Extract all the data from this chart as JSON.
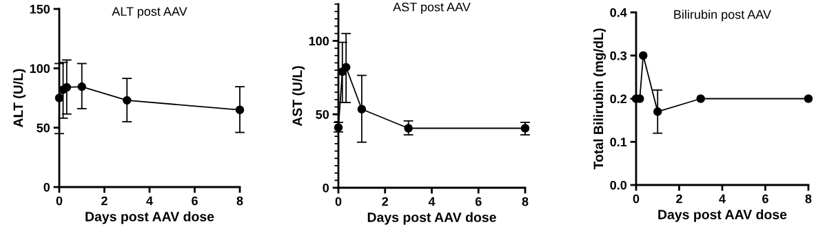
{
  "chart_data": [
    {
      "type": "line",
      "title": "ALT post AAV",
      "xlabel": "Days post AAV dose",
      "ylabel": "ALT (U/L)",
      "marker": "circle",
      "line_style": "solid",
      "grid": false,
      "xlim": [
        0,
        8
      ],
      "xticks": [
        0,
        2,
        4,
        6,
        8
      ],
      "ylim": [
        0,
        150
      ],
      "yticks": [
        0,
        50,
        100,
        150
      ],
      "series": [
        {
          "color": "#000000",
          "x": [
            0,
            0.17,
            0.33,
            1,
            3,
            8
          ],
          "values": [
            75,
            82,
            84,
            84.5,
            73,
            65
          ],
          "errors": [
            [
              45,
              104
            ],
            [
              58,
              105
            ],
            [
              61.5,
              107
            ],
            [
              66,
              104
            ],
            [
              55,
              91.5
            ],
            [
              46,
              84.5
            ]
          ]
        }
      ]
    },
    {
      "type": "line",
      "title": "AST post AAV",
      "xlabel": "Days post AAV dose",
      "ylabel": "AST (U/L)",
      "marker": "circle",
      "line_style": "solid",
      "grid": false,
      "xlim": [
        0,
        8
      ],
      "xticks": [
        0,
        2,
        4,
        6,
        8
      ],
      "ylim": [
        0,
        125
      ],
      "yticks": [
        0,
        {
          "value": 5,
          "label": null
        },
        {
          "value": 10,
          "label": null
        },
        {
          "value": 15,
          "label": null
        },
        {
          "value": 20,
          "label": null
        },
        {
          "value": 25,
          "label": null
        },
        {
          "value": 30,
          "label": null
        },
        {
          "value": 35,
          "label": null
        },
        {
          "value": 40,
          "label": null
        },
        {
          "value": 45,
          "label": null
        },
        50,
        {
          "value": 55,
          "label": null
        },
        {
          "value": 60,
          "label": null
        },
        {
          "value": 65,
          "label": null
        },
        {
          "value": 70,
          "label": null
        },
        {
          "value": 75,
          "label": null
        },
        {
          "value": 80,
          "label": null
        },
        {
          "value": 85,
          "label": null
        },
        {
          "value": 90,
          "label": null
        },
        {
          "value": 95,
          "label": null
        },
        100,
        {
          "value": 105,
          "label": null
        },
        {
          "value": 110,
          "label": null
        },
        {
          "value": 115,
          "label": null
        },
        {
          "value": 120,
          "label": null
        },
        {
          "value": 125,
          "label": null
        }
      ],
      "series": [
        {
          "color": "#000000",
          "x": [
            0,
            0.17,
            0.33,
            1,
            3,
            8
          ],
          "values": [
            41,
            79,
            82,
            53.5,
            40.5,
            40.5
          ],
          "errors": [
            [
              38,
              44.5
            ],
            [
              58,
              99
            ],
            [
              58,
              105
            ],
            [
              31,
              76.5
            ],
            [
              36,
              45.5
            ],
            [
              36,
              44.5
            ]
          ]
        }
      ]
    },
    {
      "type": "line",
      "title": "Bilirubin post AAV",
      "xlabel": "Days post AAV dose",
      "ylabel": "Total Bilirubin (mg/dL)",
      "marker": "circle",
      "line_style": "solid",
      "grid": false,
      "xlim": [
        0,
        8
      ],
      "xticks": [
        0,
        2,
        4,
        6,
        8
      ],
      "ylim": [
        0,
        0.4
      ],
      "yticks": [
        {
          "value": 0,
          "label": "0.0"
        },
        0.1,
        0.2,
        0.3,
        0.4
      ],
      "series": [
        {
          "color": "#000000",
          "x": [
            0,
            0.17,
            0.33,
            1,
            3,
            8
          ],
          "values": [
            0.2,
            0.2,
            0.3,
            0.17,
            0.2,
            0.2
          ],
          "errors": [
            null,
            null,
            null,
            [
              0.12,
              0.22
            ],
            null,
            null
          ]
        }
      ]
    }
  ]
}
